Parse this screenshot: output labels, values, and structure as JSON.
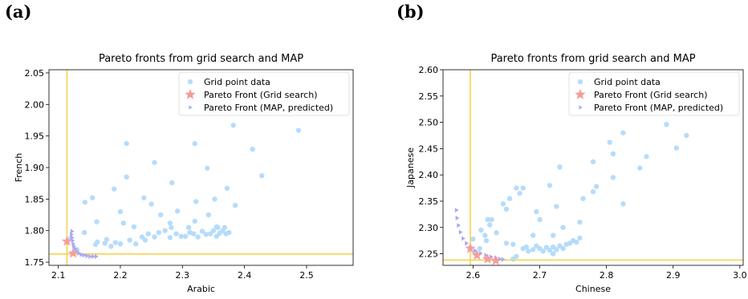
{
  "panels": [
    {
      "label": "(a)",
      "chart_data": {
        "type": "scatter",
        "title": "Pareto fronts from grid search and MAP",
        "xlabel": "Arabic",
        "ylabel": "French",
        "xlim": [
          2.085,
          2.575
        ],
        "ylim": [
          1.745,
          2.055
        ],
        "xticks": [
          "2.1",
          "2.2",
          "2.3",
          "2.4",
          "2.5"
        ],
        "yticks": [
          "1.75",
          "1.80",
          "1.85",
          "1.90",
          "1.95",
          "2.00",
          "2.05"
        ],
        "legend": [
          "Grid point data",
          "Pareto Front (Grid search)",
          "Pareto Front (MAP, predicted)"
        ],
        "legend_position": "top-right",
        "reference_lines": {
          "x": 2.114,
          "y": 1.763
        },
        "series": [
          {
            "name": "Grid point data",
            "points": [
              [
                2.21,
                1.938
              ],
              [
                2.19,
                1.866
              ],
              [
                2.143,
                1.845
              ],
              [
                2.155,
                1.852
              ],
              [
                2.21,
                1.885
              ],
              [
                2.255,
                1.908
              ],
              [
                2.283,
                1.876
              ],
              [
                2.32,
                1.938
              ],
              [
                2.382,
                1.967
              ],
              [
                2.487,
                1.959
              ],
              [
                2.413,
                1.929
              ],
              [
                2.428,
                1.887
              ],
              [
                2.34,
                1.899
              ],
              [
                2.372,
                1.867
              ],
              [
                2.385,
                1.84
              ],
              [
                2.352,
                1.85
              ],
              [
                2.322,
                1.846
              ],
              [
                2.238,
                1.852
              ],
              [
                2.2,
                1.83
              ],
              [
                2.25,
                1.842
              ],
              [
                2.265,
                1.825
              ],
              [
                2.292,
                1.831
              ],
              [
                2.342,
                1.825
              ],
              [
                2.205,
                1.812
              ],
              [
                2.222,
                1.806
              ],
              [
                2.28,
                1.812
              ],
              [
                2.32,
                1.815
              ],
              [
                2.355,
                1.806
              ],
              [
                2.162,
                1.814
              ],
              [
                2.163,
                1.782
              ],
              [
                2.178,
                1.786
              ],
              [
                2.175,
                1.78
              ],
              [
                2.192,
                1.781
              ],
              [
                2.2,
                1.779
              ],
              [
                2.215,
                1.785
              ],
              [
                2.225,
                1.779
              ],
              [
                2.235,
                1.79
              ],
              [
                2.245,
                1.795
              ],
              [
                2.255,
                1.79
              ],
              [
                2.262,
                1.797
              ],
              [
                2.272,
                1.8
              ],
              [
                2.28,
                1.789
              ],
              [
                2.29,
                1.795
              ],
              [
                2.298,
                1.791
              ],
              [
                2.305,
                1.791
              ],
              [
                2.312,
                1.797
              ],
              [
                2.318,
                1.795
              ],
              [
                2.325,
                1.79
              ],
              [
                2.332,
                1.799
              ],
              [
                2.338,
                1.794
              ],
              [
                2.345,
                1.795
              ],
              [
                2.35,
                1.8
              ],
              [
                2.355,
                1.791
              ],
              [
                2.36,
                1.796
              ],
              [
                2.365,
                1.8
              ],
              [
                2.37,
                1.795
              ],
              [
                2.375,
                1.797
              ],
              [
                2.368,
                1.805
              ],
              [
                2.357,
                1.805
              ],
              [
                2.31,
                1.805
              ],
              [
                2.282,
                1.805
              ],
              [
                2.142,
                1.797
              ],
              [
                2.12,
                1.788
              ],
              [
                2.13,
                1.77
              ],
              [
                2.16,
                1.778
              ],
              [
                2.185,
                1.775
              ],
              [
                2.24,
                1.785
              ]
            ]
          },
          {
            "name": "Pareto Front (Grid search)",
            "points": [
              [
                2.114,
                1.783
              ],
              [
                2.124,
                1.764
              ]
            ]
          },
          {
            "name": "Pareto Front (MAP, predicted)",
            "points": [
              [
                2.122,
                1.799
              ],
              [
                2.121,
                1.794
              ],
              [
                2.122,
                1.789
              ],
              [
                2.123,
                1.784
              ],
              [
                2.124,
                1.779
              ],
              [
                2.125,
                1.775
              ],
              [
                2.127,
                1.771
              ],
              [
                2.13,
                1.767
              ],
              [
                2.133,
                1.764
              ],
              [
                2.137,
                1.762
              ],
              [
                2.141,
                1.761
              ],
              [
                2.146,
                1.76
              ],
              [
                2.151,
                1.759
              ],
              [
                2.156,
                1.759
              ],
              [
                2.161,
                1.759
              ]
            ]
          }
        ]
      }
    },
    {
      "label": "(b)",
      "chart_data": {
        "type": "scatter",
        "title": "Pareto fronts from grid search and MAP",
        "xlabel": "Chinese",
        "ylabel": "Japanese",
        "xlim": [
          2.555,
          3.005
        ],
        "ylim": [
          2.228,
          2.6
        ],
        "xticks": [
          "2.6",
          "2.7",
          "2.8",
          "2.9",
          "3.0"
        ],
        "yticks": [
          "2.25",
          "2.30",
          "2.35",
          "2.40",
          "2.45",
          "2.50",
          "2.55",
          "2.60"
        ],
        "legend": [
          "Grid point data",
          "Pareto Front (Grid search)",
          "Pareto Front (MAP, predicted)"
        ],
        "legend_position": "top-right",
        "reference_lines": {
          "x": 2.596,
          "y": 2.238
        },
        "series": [
          {
            "name": "Grid point data",
            "points": [
              [
                2.89,
                2.496
              ],
              [
                2.92,
                2.475
              ],
              [
                2.905,
                2.451
              ],
              [
                2.825,
                2.48
              ],
              [
                2.805,
                2.462
              ],
              [
                2.81,
                2.44
              ],
              [
                2.86,
                2.435
              ],
              [
                2.78,
                2.425
              ],
              [
                2.85,
                2.413
              ],
              [
                2.73,
                2.415
              ],
              [
                2.81,
                2.395
              ],
              [
                2.785,
                2.378
              ],
              [
                2.78,
                2.368
              ],
              [
                2.765,
                2.355
              ],
              [
                2.825,
                2.345
              ],
              [
                2.715,
                2.38
              ],
              [
                2.675,
                2.375
              ],
              [
                2.665,
                2.375
              ],
              [
                2.67,
                2.365
              ],
              [
                2.655,
                2.355
              ],
              [
                2.645,
                2.345
              ],
              [
                2.65,
                2.335
              ],
              [
                2.695,
                2.33
              ],
              [
                2.725,
                2.34
              ],
              [
                2.7,
                2.315
              ],
              [
                2.622,
                2.315
              ],
              [
                2.628,
                2.315
              ],
              [
                2.625,
                2.305
              ],
              [
                2.76,
                2.31
              ],
              [
                2.735,
                2.3
              ],
              [
                2.72,
                2.285
              ],
              [
                2.69,
                2.285
              ],
              [
                2.635,
                2.29
              ],
              [
                2.612,
                2.295
              ],
              [
                2.618,
                2.285
              ],
              [
                2.6,
                2.278
              ],
              [
                2.65,
                2.27
              ],
              [
                2.66,
                2.268
              ],
              [
                2.68,
                2.263
              ],
              [
                2.69,
                2.258
              ],
              [
                2.695,
                2.265
              ],
              [
                2.7,
                2.26
              ],
              [
                2.705,
                2.255
              ],
              [
                2.71,
                2.262
              ],
              [
                2.715,
                2.257
              ],
              [
                2.72,
                2.263
              ],
              [
                2.725,
                2.258
              ],
              [
                2.73,
                2.265
              ],
              [
                2.735,
                2.26
              ],
              [
                2.74,
                2.268
              ],
              [
                2.745,
                2.27
              ],
              [
                2.75,
                2.275
              ],
              [
                2.755,
                2.272
              ],
              [
                2.76,
                2.28
              ],
              [
                2.675,
                2.26
              ],
              [
                2.683,
                2.255
              ],
              [
                2.72,
                2.25
              ],
              [
                2.61,
                2.26
              ],
              [
                2.603,
                2.252
              ],
              [
                2.62,
                2.275
              ],
              [
                2.665,
                2.245
              ],
              [
                2.66,
                2.24
              ]
            ]
          },
          {
            "name": "Pareto Front (Grid search)",
            "points": [
              [
                2.596,
                2.26
              ],
              [
                2.606,
                2.247
              ],
              [
                2.622,
                2.24
              ],
              [
                2.634,
                2.237
              ]
            ]
          },
          {
            "name": "Pareto Front (MAP, predicted)",
            "points": [
              [
                2.575,
                2.333
              ],
              [
                2.576,
                2.318
              ],
              [
                2.578,
                2.304
              ],
              [
                2.581,
                2.291
              ],
              [
                2.585,
                2.279
              ],
              [
                2.59,
                2.27
              ],
              [
                2.596,
                2.262
              ],
              [
                2.603,
                2.256
              ],
              [
                2.611,
                2.251
              ],
              [
                2.619,
                2.247
              ],
              [
                2.627,
                2.244
              ],
              [
                2.634,
                2.242
              ],
              [
                2.64,
                2.24
              ],
              [
                2.645,
                2.239
              ]
            ]
          }
        ]
      }
    }
  ],
  "colors": {
    "grid_point": "#b6dcfb",
    "pareto_grid": "#f59a9a",
    "pareto_map": "#a9a9f4",
    "reference_line": "#f6d24f"
  }
}
